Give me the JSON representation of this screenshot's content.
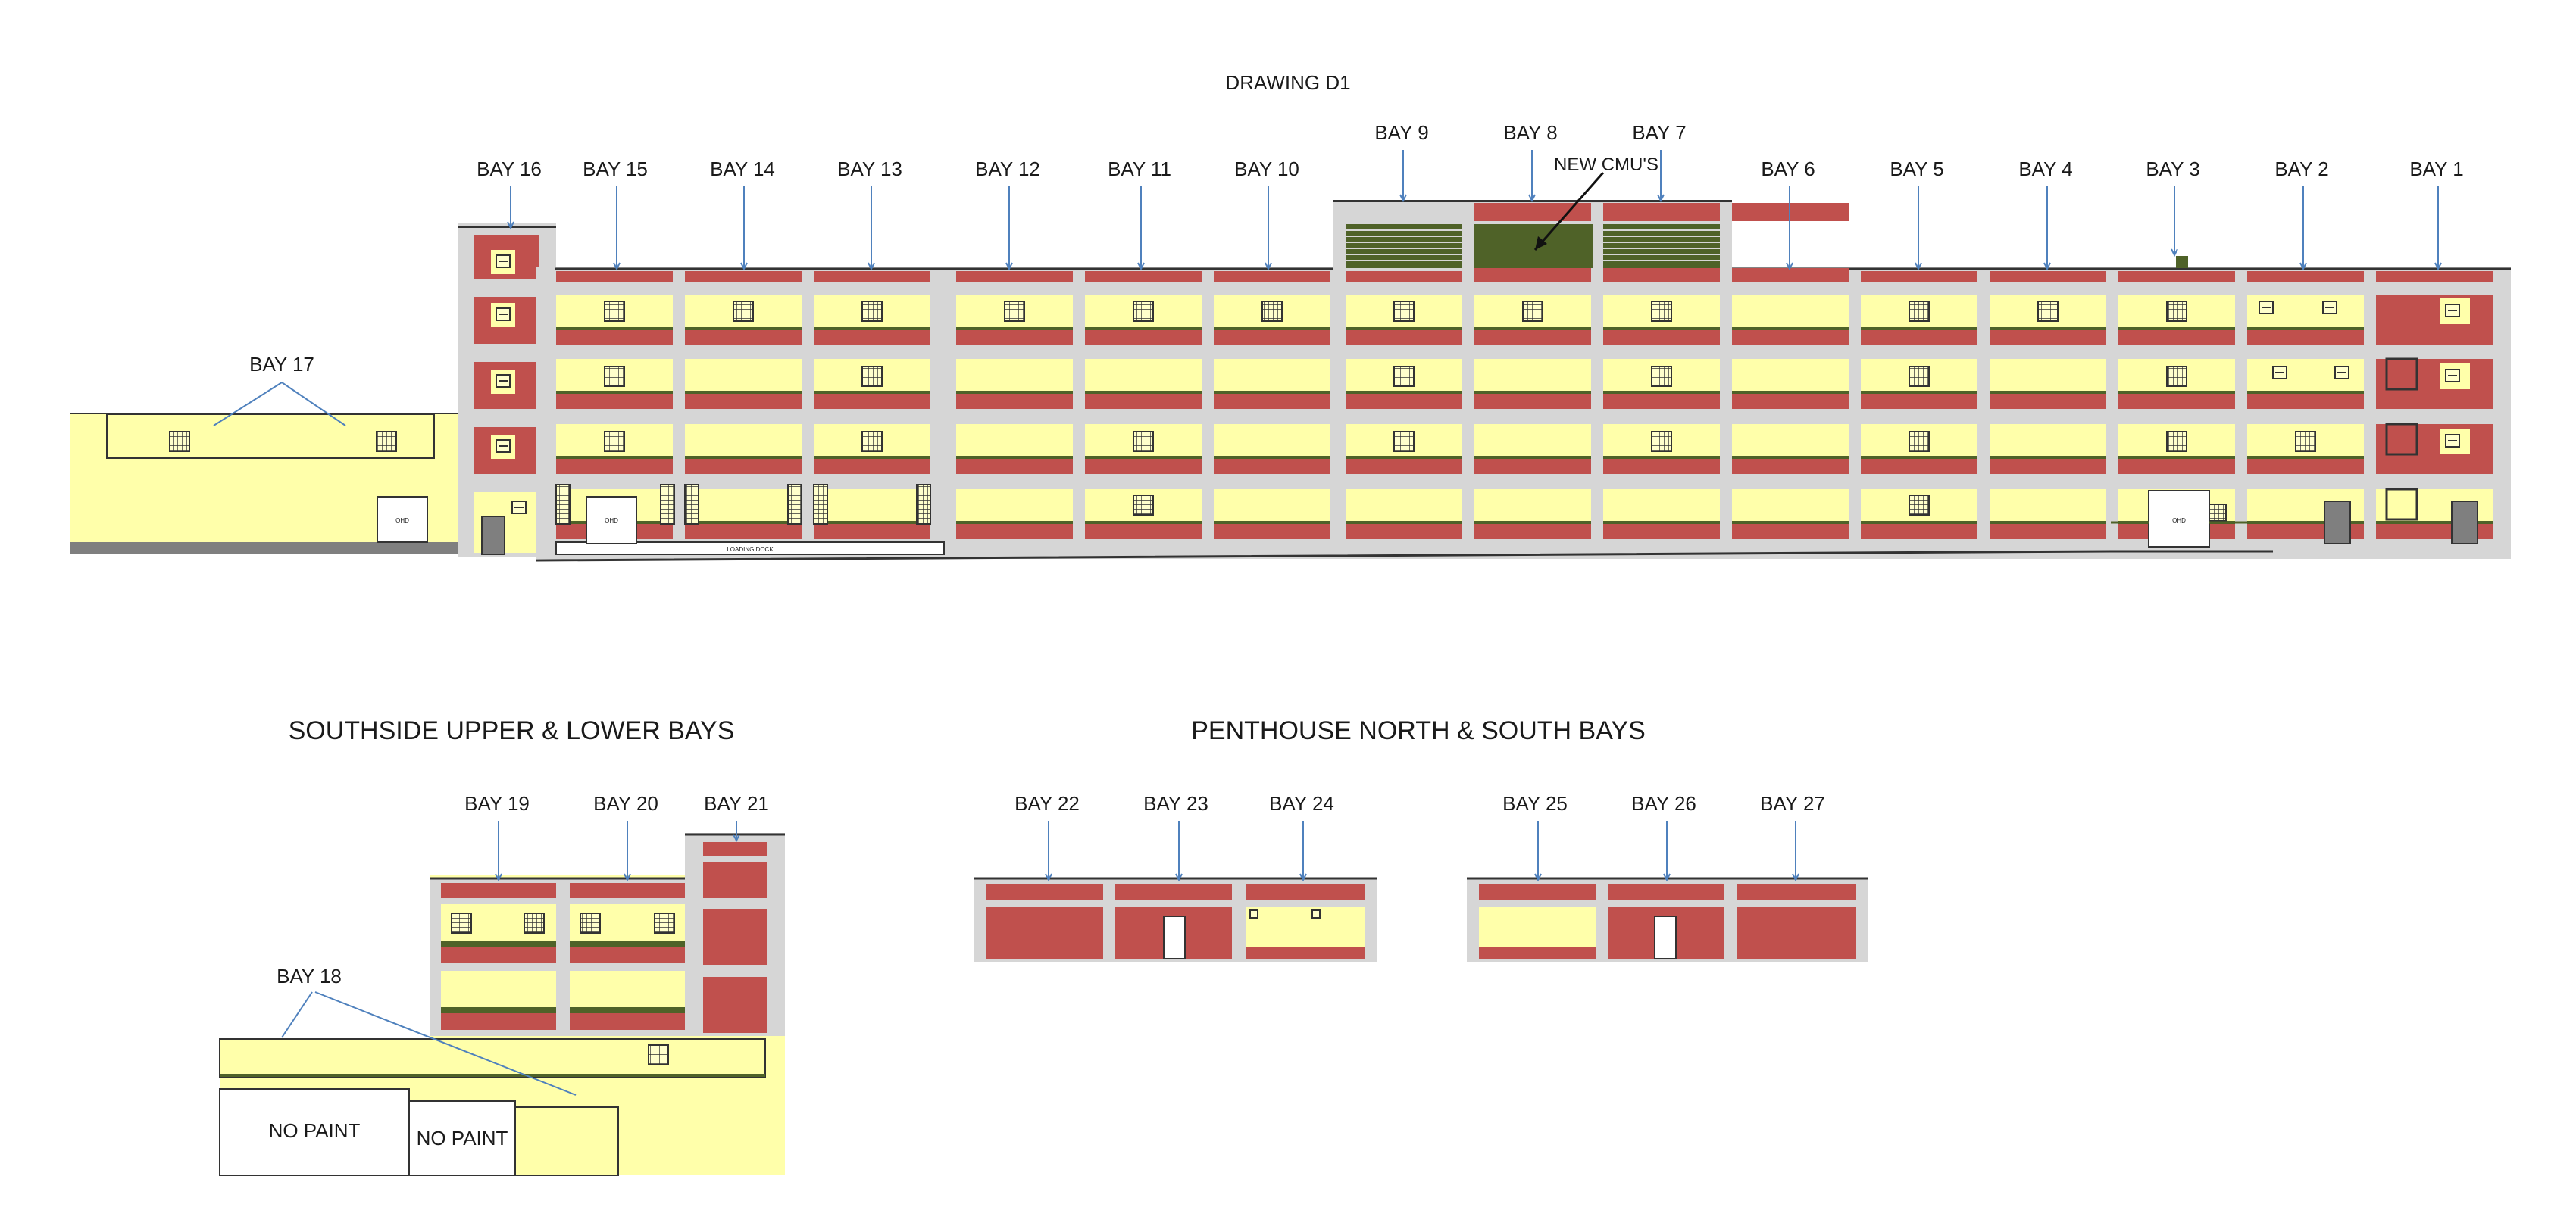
{
  "title": "DRAWING D1",
  "colors": {
    "red": "#c0504d",
    "yellow": "#ffffaa",
    "gray": "#d6d6d6",
    "green": "#4f6228",
    "arrow": "#4f81bd",
    "ink": "#111111"
  },
  "main": {
    "bays": [
      "BAY 16",
      "BAY 15",
      "BAY 14",
      "BAY 13",
      "BAY 12",
      "BAY 11",
      "BAY 10",
      "BAY 9",
      "BAY 8",
      "BAY 7",
      "BAY 6",
      "BAY 5",
      "BAY 4",
      "BAY 3",
      "BAY 2",
      "BAY 1"
    ],
    "bay17": "BAY 17",
    "new_cmu": "NEW CMU'S",
    "ohd": "OHD",
    "loading_dock": "LOADING DOCK"
  },
  "southside": {
    "title": "SOUTHSIDE UPPER & LOWER BAYS",
    "bays": [
      "BAY 19",
      "BAY 20",
      "BAY 21"
    ],
    "bay18": "BAY 18",
    "no_paint": "NO PAINT"
  },
  "penthouse": {
    "title": "PENTHOUSE NORTH & SOUTH BAYS",
    "bays": [
      "BAY 22",
      "BAY 23",
      "BAY 24",
      "BAY 25",
      "BAY 26",
      "BAY 27"
    ]
  }
}
